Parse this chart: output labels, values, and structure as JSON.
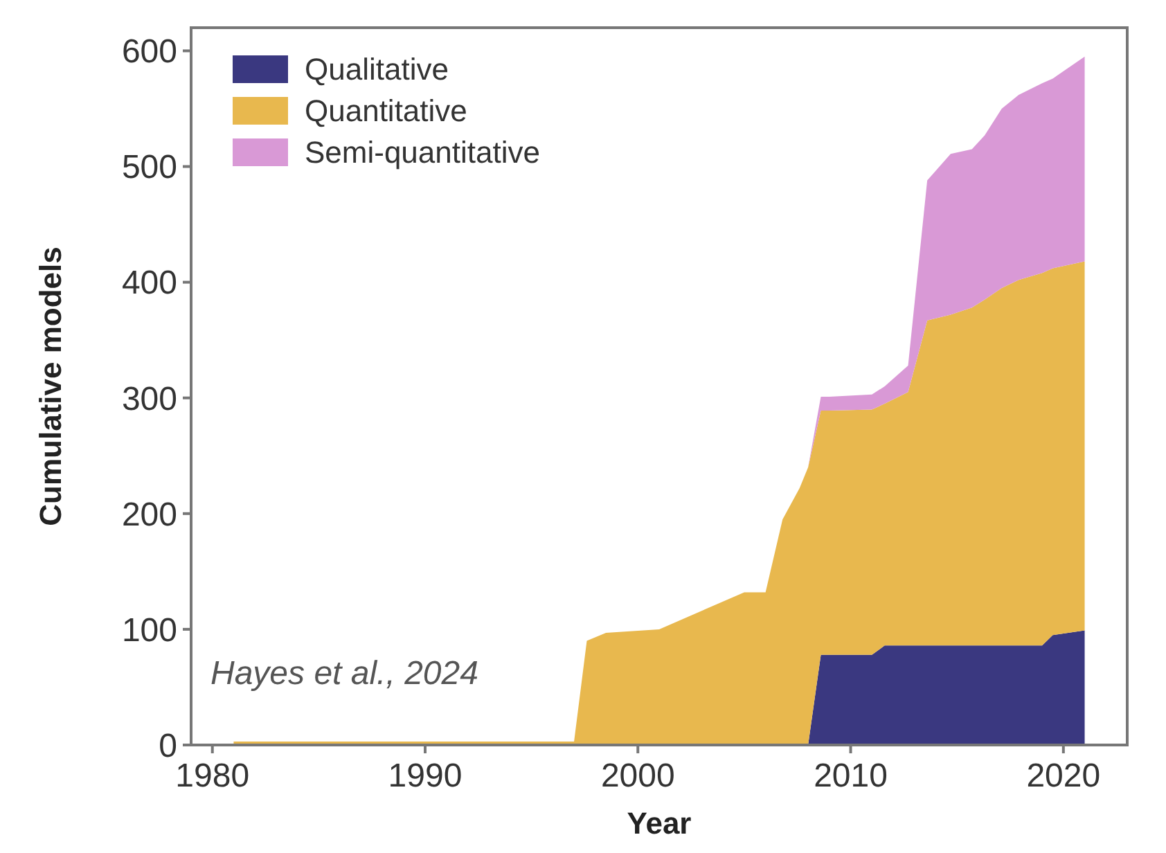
{
  "chart_data": {
    "type": "area",
    "stacked": true,
    "xlabel": "Year",
    "ylabel": "Cumulative models",
    "x": [
      1981,
      1997,
      1997.6,
      1998.5,
      2001,
      2005,
      2006,
      2006.8,
      2007.6,
      2008,
      2008.6,
      2009,
      2011,
      2011.6,
      2012.7,
      2013.6,
      2014.7,
      2015.7,
      2016.3,
      2017.1,
      2017.9,
      2019,
      2019.5,
      2021
    ],
    "series": [
      {
        "name": "Qualitative",
        "color": "#3a3880",
        "values": [
          0,
          0,
          0,
          0,
          0,
          0,
          0,
          0,
          0,
          0,
          78,
          78,
          78,
          86,
          86,
          86,
          86,
          86,
          86,
          86,
          86,
          86,
          95,
          99
        ]
      },
      {
        "name": "Quantitative",
        "color": "#e8b84e",
        "values": [
          3,
          3,
          90,
          97,
          100,
          132,
          132,
          195,
          222,
          240,
          211,
          211,
          212,
          209,
          219,
          281,
          286,
          292,
          299,
          309,
          316,
          322,
          317,
          319
        ]
      },
      {
        "name": "Semi-quantitative",
        "color": "#d999d6",
        "values": [
          0,
          0,
          0,
          0,
          0,
          0,
          0,
          0,
          0,
          0,
          12,
          12,
          13,
          15,
          23,
          121,
          139,
          137,
          142,
          155,
          160,
          164,
          164,
          177
        ]
      }
    ],
    "xlim": [
      1979,
      2023
    ],
    "xticks": [
      1980,
      1990,
      2000,
      2010,
      2020
    ],
    "ylim": [
      0,
      620
    ],
    "yticks": [
      0,
      100,
      200,
      300,
      400,
      500,
      600
    ],
    "grid": false,
    "legend": "top left",
    "annotations": [
      "Hayes et al., 2024"
    ]
  }
}
